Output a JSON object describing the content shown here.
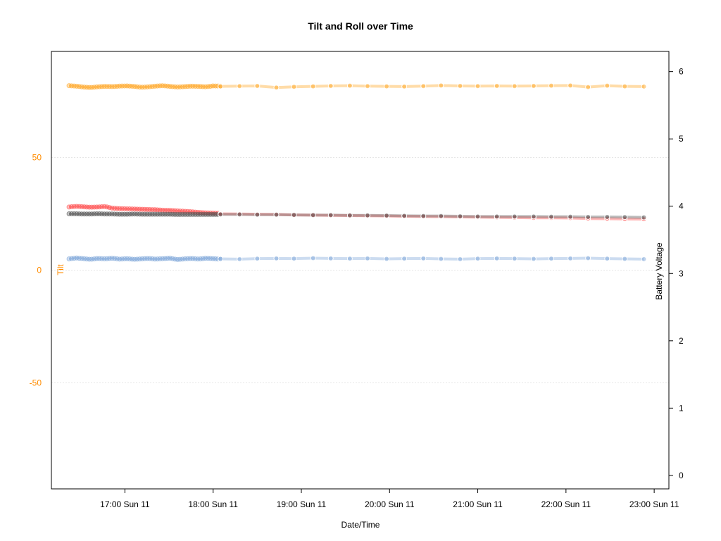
{
  "chart_data": {
    "type": "line",
    "title": "Tilt and Roll over Time",
    "xlabel": "Date/Time",
    "ylabel_left": "Tilt",
    "ylabel_right": "Battery Voltage",
    "ylim_left": [
      -97,
      97
    ],
    "ylim_right": [
      -0.2,
      6.3
    ],
    "x_range": [
      "16:10 Sun 11",
      "23:10 Sun 11"
    ],
    "x_ticks": [
      {
        "value": "17:00",
        "label": "17:00 Sun 11"
      },
      {
        "value": "18:00",
        "label": "18:00 Sun 11"
      },
      {
        "value": "19:00",
        "label": "19:00 Sun 11"
      },
      {
        "value": "20:00",
        "label": "20:00 Sun 11"
      },
      {
        "value": "21:00",
        "label": "21:00 Sun 11"
      },
      {
        "value": "22:00",
        "label": "22:00 Sun 11"
      },
      {
        "value": "23:00",
        "label": "23:00 Sun 11"
      }
    ],
    "y_ticks_left": [
      -50,
      0,
      50
    ],
    "y_ticks_right": [
      0,
      1,
      2,
      3,
      4,
      5,
      6
    ],
    "grid_y": true,
    "colors": {
      "left_axis": "#ff8c00",
      "series1": "#ffa726",
      "series2": "#ff4d4d",
      "series3": "#555555",
      "series4": "#7fa7d9"
    },
    "dense_segment": {
      "start": "16:22",
      "end": "18:05",
      "note_values": "5-minute samples",
      "series": [
        {
          "axis": "left",
          "color_key": "series1",
          "values": [
            81.8,
            81.6,
            81.2,
            81.0,
            81.3,
            81.5,
            81.4,
            81.6,
            81.7,
            81.5,
            81.1,
            81.3,
            81.6,
            81.8,
            81.5,
            81.2,
            81.4,
            81.6,
            81.5,
            81.3,
            81.7,
            81.6
          ]
        },
        {
          "axis": "left",
          "color_key": "series2",
          "values": [
            28.0,
            28.3,
            28.1,
            27.9,
            28.0,
            28.2,
            27.5,
            27.3,
            27.2,
            27.1,
            27.0,
            26.9,
            26.8,
            26.6,
            26.5,
            26.3,
            26.1,
            25.9,
            25.6,
            25.4,
            25.3,
            25.2
          ]
        },
        {
          "axis": "left",
          "color_key": "series3",
          "values": [
            25.0,
            25.0,
            24.9,
            24.9,
            25.0,
            24.9,
            24.9,
            24.8,
            24.8,
            24.9,
            24.8,
            24.8,
            24.8,
            24.8,
            24.8,
            24.7,
            24.7,
            24.7,
            24.7,
            24.7,
            24.7,
            24.7
          ]
        },
        {
          "axis": "left",
          "color_key": "series4",
          "values": [
            5.0,
            5.4,
            5.1,
            4.8,
            5.2,
            5.0,
            5.3,
            4.9,
            5.1,
            4.8,
            5.0,
            5.2,
            4.9,
            5.1,
            5.3,
            4.7,
            5.0,
            5.2,
            4.9,
            5.3,
            5.1,
            4.9
          ]
        }
      ]
    },
    "sparse_segment": {
      "times": [
        "18:05",
        "18:18",
        "18:30",
        "18:43",
        "18:55",
        "19:08",
        "19:20",
        "19:33",
        "19:45",
        "19:58",
        "20:10",
        "20:23",
        "20:35",
        "20:48",
        "21:00",
        "21:13",
        "21:25",
        "21:38",
        "21:50",
        "22:03",
        "22:15",
        "22:28",
        "22:40",
        "22:53"
      ],
      "series": [
        {
          "axis": "left",
          "color_key": "series1",
          "values": [
            81.5,
            81.6,
            81.7,
            81.0,
            81.3,
            81.5,
            81.7,
            81.8,
            81.6,
            81.5,
            81.4,
            81.6,
            81.9,
            81.7,
            81.6,
            81.7,
            81.6,
            81.7,
            81.8,
            81.9,
            81.2,
            81.8,
            81.5,
            81.4
          ]
        },
        {
          "axis": "left",
          "color_key": "series2",
          "values": [
            25.0,
            24.9,
            24.8,
            24.7,
            24.5,
            24.4,
            24.3,
            24.2,
            24.1,
            24.0,
            23.9,
            23.8,
            23.7,
            23.6,
            23.5,
            23.4,
            23.3,
            23.2,
            23.2,
            23.1,
            22.9,
            22.8,
            22.7,
            22.6
          ]
        },
        {
          "axis": "left",
          "color_key": "series3",
          "values": [
            24.7,
            24.7,
            24.6,
            24.6,
            24.5,
            24.4,
            24.4,
            24.3,
            24.3,
            24.2,
            24.1,
            24.0,
            24.0,
            23.9,
            23.8,
            23.8,
            23.8,
            23.8,
            23.7,
            23.7,
            23.6,
            23.6,
            23.5,
            23.4
          ]
        },
        {
          "axis": "left",
          "color_key": "series4",
          "values": [
            5.0,
            4.9,
            5.1,
            5.2,
            5.1,
            5.3,
            5.2,
            5.1,
            5.2,
            5.0,
            5.1,
            5.2,
            5.0,
            4.9,
            5.1,
            5.2,
            5.1,
            5.0,
            5.1,
            5.2,
            5.3,
            5.1,
            5.0,
            4.9
          ]
        }
      ]
    }
  }
}
